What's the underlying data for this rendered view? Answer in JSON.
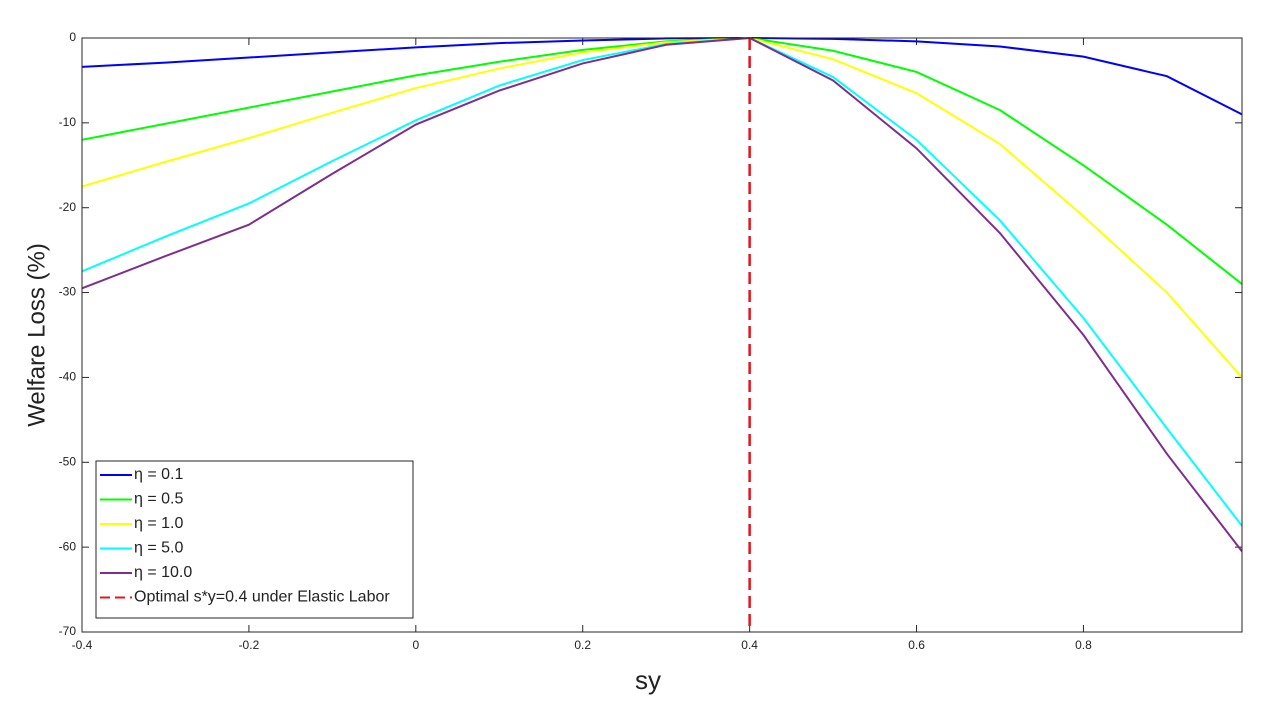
{
  "chart_data": {
    "type": "line",
    "x_label": "sy",
    "y_label": "Welfare Loss (%)",
    "x": [
      -0.4,
      -0.3,
      -0.2,
      -0.1,
      0,
      0.1,
      0.2,
      0.3,
      0.4,
      0.5,
      0.6,
      0.7,
      0.8,
      0.9,
      0.99
    ],
    "series": [
      {
        "name": "η = 0.1",
        "color": "#0000ff",
        "values": [
          -3.4,
          -2.9,
          -2.3,
          -1.7,
          -1.1,
          -0.6,
          -0.3,
          -0.05,
          0,
          -0.1,
          -0.4,
          -1.0,
          -2.2,
          -4.5,
          -9.0
        ]
      },
      {
        "name": "η = 0.5",
        "color": "#00ff00",
        "values": [
          -12,
          -10.1,
          -8.2,
          -6.3,
          -4.4,
          -2.8,
          -1.4,
          -0.4,
          0,
          -1.5,
          -4.0,
          -8.5,
          -15,
          -22,
          -29
        ]
      },
      {
        "name": "η = 1.0",
        "color": "#ffff00",
        "values": [
          -17.5,
          -14.6,
          -11.8,
          -8.8,
          -5.9,
          -3.6,
          -1.7,
          -0.5,
          0,
          -2.5,
          -6.5,
          -12.5,
          -21,
          -30,
          -40
        ]
      },
      {
        "name": "η = 5.0",
        "color": "#00ffff",
        "values": [
          -27.5,
          -23.4,
          -19.5,
          -14.5,
          -9.7,
          -5.6,
          -2.6,
          -0.7,
          0,
          -4.6,
          -12,
          -21.5,
          -33,
          -46,
          -57.5
        ]
      },
      {
        "name": "η = 10.0",
        "color": "#7e2f8e",
        "values": [
          -29.5,
          -25.7,
          -22,
          -16,
          -10.2,
          -6.2,
          -3.0,
          -0.8,
          0,
          -5,
          -13,
          -23,
          -35,
          -49,
          -60.5
        ]
      }
    ],
    "vline": {
      "x": 0.4,
      "name": "Optimal s*y=0.4 under Elastic Labor",
      "color": "#e8141c"
    },
    "xlim": [
      -0.4,
      0.99
    ],
    "ylim": [
      -70,
      0
    ],
    "xticks": [
      -0.4,
      -0.2,
      0,
      0.2,
      0.4,
      0.6,
      0.8
    ],
    "yticks": [
      -70,
      -60,
      -50,
      -40,
      -30,
      -20,
      -10,
      0
    ],
    "legend": "lower left"
  }
}
